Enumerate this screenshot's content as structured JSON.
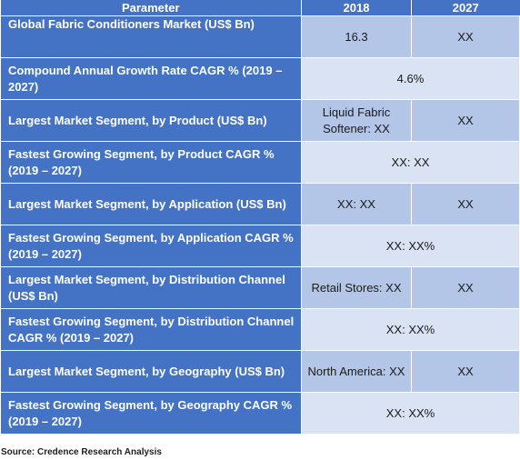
{
  "header": {
    "parameter": "Parameter",
    "col_2018": "2018",
    "col_2027": "2027"
  },
  "rows": [
    {
      "parameter": "Global Fabric Conditioners  Market  (US$ Bn)",
      "v2018": "16.3",
      "v2027": "XX"
    },
    {
      "parameter": "Compound Annual Growth Rate CAGR % (2019 – 2027)",
      "merged": "4.6%"
    },
    {
      "parameter": "Largest Market Segment, by Product (US$ Bn)",
      "v2018": "Liquid Fabric Softener: XX",
      "v2027": "XX"
    },
    {
      "parameter": "Fastest Growing Segment, by Product CAGR % (2019 – 2027)",
      "merged": "XX: XX"
    },
    {
      "parameter": "Largest Market Segment, by Application (US$ Bn)",
      "v2018": "XX: XX",
      "v2027": "XX"
    },
    {
      "parameter": "Fastest Growing Segment, by Application CAGR % (2019 – 2027)",
      "merged": "XX: XX%"
    },
    {
      "parameter": "Largest Market Segment, by Distribution Channel (US$ Bn)",
      "v2018": "Retail Stores: XX",
      "v2027": "XX"
    },
    {
      "parameter": "Fastest Growing Segment, by Distribution Channel CAGR % (2019 – 2027)",
      "merged": "XX: XX%"
    },
    {
      "parameter": "Largest Market Segment, by Geography (US$ Bn)",
      "v2018": "North America: XX",
      "v2027": "XX"
    },
    {
      "parameter": "Fastest Growing Segment, by Geography CAGR % (2019 – 2027)",
      "merged": "XX: XX%"
    }
  ],
  "source": "Source: Credence Research Analysis",
  "colors": {
    "header_bg": "#4472c4",
    "cell_dark": "#b4c6e7",
    "cell_light": "#dae3f3"
  }
}
